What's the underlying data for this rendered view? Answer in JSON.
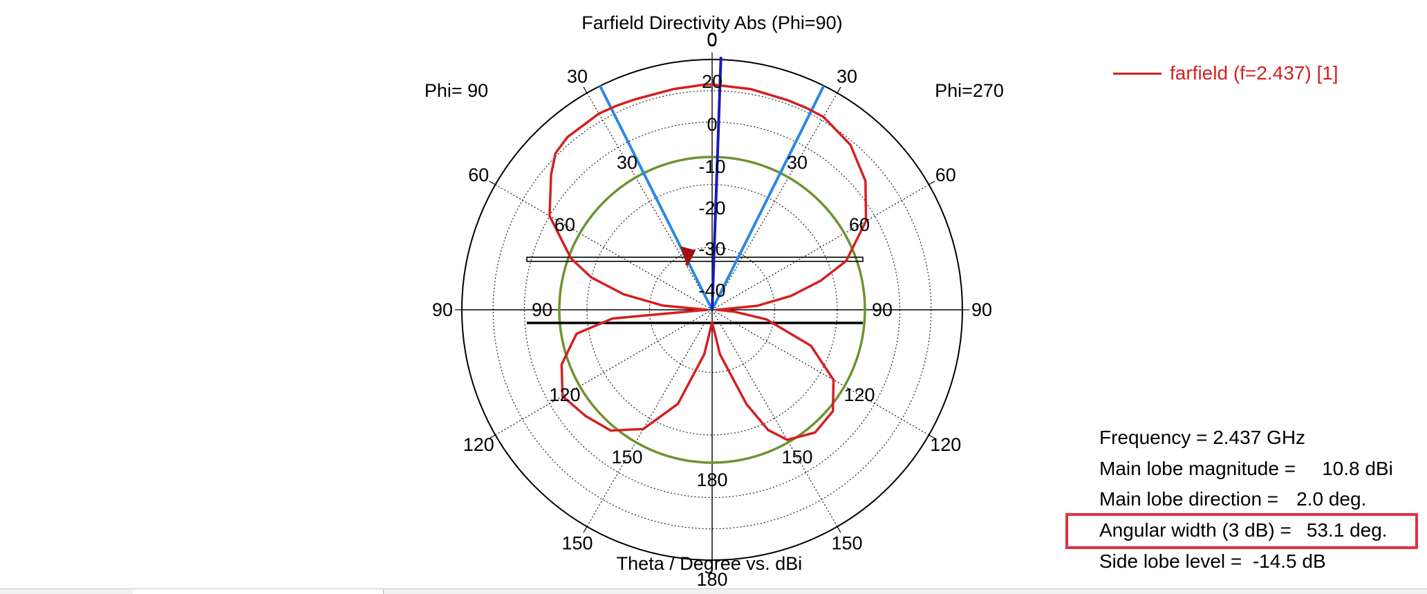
{
  "chart_data": {
    "type": "polar",
    "title": "Farfield Directivity Abs (Phi=90)",
    "xlabel": "Theta / Degree vs. dBi",
    "left_half_label": "Phi= 90",
    "right_half_label": "Phi=270",
    "radial_ticks": [
      "20",
      "0",
      "-10",
      "-20",
      "-30",
      "-40"
    ],
    "radial_ticks_outer_ring": [
      "0",
      "30",
      "60"
    ],
    "angle_ticks_outer": [
      "0",
      "30",
      "30",
      "60",
      "60",
      "90",
      "90",
      "120",
      "120",
      "150",
      "150",
      "180"
    ],
    "angle_ticks_inner": [
      "30",
      "30",
      "60",
      "60",
      "90",
      "90",
      "120",
      "120",
      "150",
      "150",
      "180"
    ],
    "series": [
      {
        "name": "farfield (f=2.437) [1]",
        "color": "#d42020",
        "theta_deg": [
          -90,
          -85,
          -80,
          -75,
          -70,
          -60,
          -50,
          -45,
          -40,
          -30,
          -25,
          -20,
          -10,
          -2,
          0,
          10,
          20,
          25,
          30,
          40,
          50,
          60,
          70,
          75,
          80,
          85,
          90,
          95,
          100,
          110,
          120,
          130,
          140,
          150,
          155,
          160,
          170,
          180,
          190,
          200,
          210,
          220,
          230,
          240,
          250,
          260,
          265,
          270
        ],
        "r_norm": [
          0.02,
          0.2,
          0.36,
          0.5,
          0.6,
          0.75,
          0.84,
          0.885,
          0.9,
          0.905,
          0.9,
          0.895,
          0.895,
          0.9,
          0.9,
          0.895,
          0.89,
          0.89,
          0.89,
          0.86,
          0.8,
          0.71,
          0.57,
          0.45,
          0.32,
          0.18,
          0.02,
          0.09,
          0.22,
          0.42,
          0.56,
          0.63,
          0.64,
          0.6,
          0.53,
          0.4,
          0.18,
          0.05,
          0.18,
          0.4,
          0.55,
          0.63,
          0.66,
          0.69,
          0.64,
          0.55,
          0.4,
          0.02
        ]
      }
    ],
    "markers": {
      "main_lobe_direction_deg": 2.0,
      "beam_edges_deg": [
        -26.6,
        26.5
      ],
      "threshold_ring_dbi": 7.8
    }
  },
  "legend": {
    "label": "farfield (f=2.437) [1]",
    "color": "#d42020"
  },
  "info": {
    "frequency_label": "Frequency = 2.437 GHz",
    "main_lobe_magnitude_label": "Main lobe magnitude =",
    "main_lobe_magnitude_value": "10.8 dBi",
    "main_lobe_direction_label": "Main lobe direction =",
    "main_lobe_direction_value": "2.0 deg.",
    "angular_width_label": "Angular width (3 dB) =",
    "angular_width_value": "53.1 deg.",
    "side_lobe_label": "Side lobe level =  -14.5 dB"
  },
  "colors": {
    "curve": "#d42020",
    "main_lobe": "#1a1ab8",
    "beam_edges": "#2a8ae0",
    "threshold": "#6e9230",
    "highlight": "#e03040"
  }
}
